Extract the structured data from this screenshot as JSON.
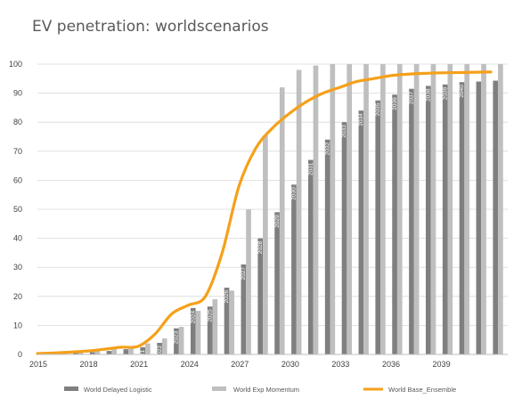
{
  "chart_data": {
    "type": "bar",
    "title": "EV penetration: worldscenarios",
    "xlabel": "",
    "ylabel": "",
    "ylim": [
      0,
      100
    ],
    "yticks": [
      0,
      10,
      20,
      30,
      40,
      50,
      60,
      70,
      80,
      90,
      100
    ],
    "xtick_labels": [
      "2015",
      "2018",
      "2021",
      "2024",
      "2027",
      "2030",
      "2033",
      "2036",
      "2039"
    ],
    "categories": [
      2015,
      2016,
      2017,
      2018,
      2019,
      2020,
      2021,
      2022,
      2023,
      2024,
      2025,
      2026,
      2027,
      2028,
      2029,
      2030,
      2031,
      2032,
      2033,
      2034,
      2035,
      2036,
      2037,
      2038,
      2039,
      2040,
      2041,
      2042
    ],
    "bar_labels": [
      "",
      "",
      "",
      "",
      "",
      "",
      "2021",
      "2022",
      "2023",
      "2024",
      "2025",
      "2026",
      "2027",
      "2028",
      "2029",
      "2030",
      "2031",
      "2032",
      "2033",
      "2034",
      "2035",
      "2036",
      "2037",
      "2038",
      "2039",
      "2040",
      "",
      ""
    ],
    "series": [
      {
        "name": "World Delayed Logistic",
        "kind": "bar",
        "color": "#7f7f7f",
        "values": [
          0.2,
          0.3,
          0.5,
          0.8,
          1.2,
          1.8,
          2.5,
          4,
          9,
          16,
          16.5,
          23,
          31,
          40,
          49,
          58.5,
          67,
          74,
          80,
          84,
          87.5,
          89.5,
          91.5,
          92.5,
          93,
          93.8,
          94,
          94.3
        ]
      },
      {
        "name": "World Exp Momentum",
        "kind": "bar",
        "color": "#bfbfbf",
        "values": [
          0.3,
          0.5,
          0.8,
          1.2,
          2,
          2.8,
          3.8,
          5.5,
          9.5,
          15,
          19,
          22,
          50,
          75.5,
          92,
          98,
          99.5,
          100,
          100,
          100,
          100,
          100,
          100,
          100,
          100,
          100,
          100,
          100
        ]
      },
      {
        "name": "World Base_Ensemble",
        "kind": "line",
        "color": "#f5a01a",
        "values": [
          0.3,
          0.5,
          0.8,
          1.2,
          1.8,
          2.5,
          2.8,
          7,
          14,
          17,
          20,
          35,
          58,
          71,
          78,
          83,
          87,
          90,
          92,
          94,
          95,
          96,
          96.5,
          96.8,
          97,
          97.1,
          97.2,
          97.3
        ]
      }
    ],
    "legend": {
      "position": "bottom"
    },
    "grid": {
      "horizontal": true,
      "vertical": false
    }
  }
}
